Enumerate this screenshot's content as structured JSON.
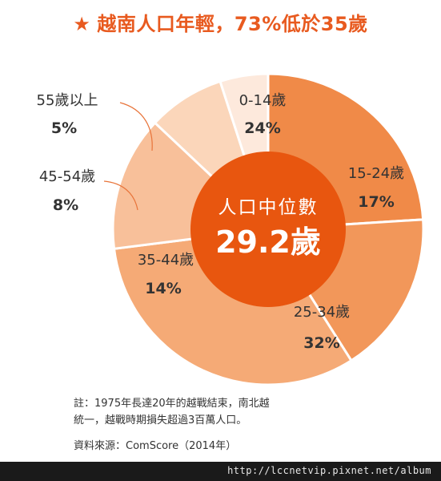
{
  "title": {
    "icon": "star-icon",
    "text": "越南人口年輕，73%低於35歲"
  },
  "chart_data": {
    "type": "pie",
    "center": {
      "label": "人口中位數",
      "value": "29.2歲"
    },
    "slices": [
      {
        "label": "0-14歲",
        "percent_text": "24%",
        "value": 24,
        "color": "#f08a48"
      },
      {
        "label": "15-24歲",
        "percent_text": "17%",
        "value": 17,
        "color": "#f2975a"
      },
      {
        "label": "25-34歲",
        "percent_text": "32%",
        "value": 32,
        "color": "#f5aa76"
      },
      {
        "label": "35-44歲",
        "percent_text": "14%",
        "value": 14,
        "color": "#f8c09a"
      },
      {
        "label": "45-54歲",
        "percent_text": "8%",
        "value": 8,
        "color": "#fbd6ba"
      },
      {
        "label": "55歲以上",
        "percent_text": "5%",
        "value": 5,
        "color": "#fde9dc"
      }
    ]
  },
  "note": {
    "line1": "註：1975年長達20年的越戰結束，南北越",
    "line2": "統一，越戰時期損失超過3百萬人口。"
  },
  "source": "資料來源：ComScore（2014年）",
  "footer": {
    "url": "http://lccnetvip.pixnet.net/album"
  },
  "colors": {
    "accent": "#e85a1f",
    "center": "#e8560f",
    "leader": "#e8743a"
  }
}
